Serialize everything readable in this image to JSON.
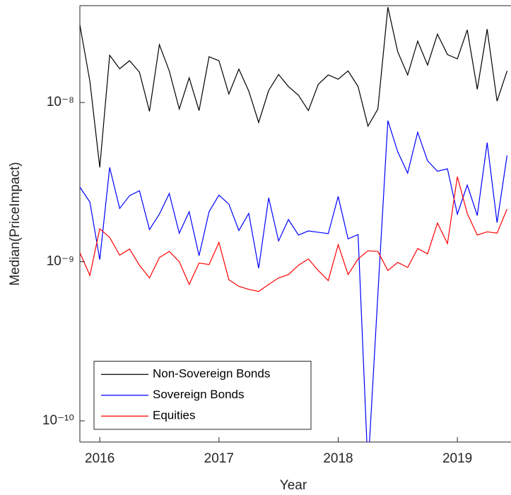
{
  "chart_data": {
    "type": "line",
    "xlabel": "Year",
    "ylabel": "Median(PriceImpact)",
    "x": [
      2015.833,
      2015.917,
      2016.0,
      2016.083,
      2016.167,
      2016.25,
      2016.333,
      2016.417,
      2016.5,
      2016.583,
      2016.667,
      2016.75,
      2016.833,
      2016.917,
      2017.0,
      2017.083,
      2017.167,
      2017.25,
      2017.333,
      2017.417,
      2017.5,
      2017.583,
      2017.667,
      2017.75,
      2017.833,
      2017.917,
      2018.0,
      2018.083,
      2018.167,
      2018.25,
      2018.333,
      2018.417,
      2018.5,
      2018.583,
      2018.667,
      2018.75,
      2018.833,
      2018.917,
      2019.0,
      2019.083,
      2019.167,
      2019.25,
      2019.333,
      2019.417
    ],
    "series": [
      {
        "name": "Non-Sovereign Bonds",
        "color": "#000000",
        "values": [
          3.07e-08,
          1.36e-08,
          3.91e-09,
          1.98e-08,
          1.63e-08,
          1.83e-08,
          1.55e-08,
          8.8e-09,
          2.31e-08,
          1.58e-08,
          9.1e-09,
          1.43e-08,
          8.9e-09,
          1.94e-08,
          1.83e-08,
          1.13e-08,
          1.62e-08,
          1.18e-08,
          7.5e-09,
          1.19e-08,
          1.5e-08,
          1.26e-08,
          1.11e-08,
          8.9e-09,
          1.3e-08,
          1.49e-08,
          1.4e-08,
          1.58e-08,
          1.26e-08,
          7.1e-09,
          9.1e-09,
          3.97e-08,
          2.08e-08,
          1.49e-08,
          2.43e-08,
          1.72e-08,
          2.69e-08,
          2e-08,
          1.88e-08,
          2.86e-08,
          1.21e-08,
          2.89e-08,
          1.02e-08,
          1.58e-08
        ]
      },
      {
        "name": "Sovereign Bonds",
        "color": "#0000ff",
        "values": [
          2.94e-09,
          2.37e-09,
          1.03e-09,
          3.91e-09,
          2.16e-09,
          2.6e-09,
          2.79e-09,
          1.59e-09,
          1.99e-09,
          2.68e-09,
          1.51e-09,
          2.06e-09,
          1.09e-09,
          2.06e-09,
          2.62e-09,
          2.3e-09,
          1.57e-09,
          2.01e-09,
          9.1e-10,
          2.52e-09,
          1.35e-09,
          1.84e-09,
          1.47e-09,
          1.56e-09,
          1.53e-09,
          1.5e-09,
          2.57e-09,
          1.39e-09,
          1.48e-09,
          5e-11,
          6.2e-10,
          7.7e-09,
          4.9e-09,
          3.6e-09,
          6.5e-09,
          4.3e-09,
          3.7e-09,
          3.83e-09,
          1.99e-09,
          3.03e-09,
          1.95e-09,
          5.6e-09,
          1.76e-09,
          4.65e-09
        ]
      },
      {
        "name": "Equities",
        "color": "#ff0000",
        "values": [
          1.14e-09,
          8.2e-10,
          1.61e-09,
          1.42e-09,
          1.1e-09,
          1.2e-09,
          9.5e-10,
          7.9e-10,
          1.06e-09,
          1.16e-09,
          1e-09,
          7.2e-10,
          9.8e-10,
          9.6e-10,
          1.32e-09,
          7.7e-10,
          7e-10,
          6.7e-10,
          6.5e-10,
          7.2e-10,
          7.9e-10,
          8.3e-10,
          9.5e-10,
          1.04e-09,
          8.8e-10,
          7.6e-10,
          1.28e-09,
          8.3e-10,
          1.04e-09,
          1.17e-09,
          1.16e-09,
          8.8e-10,
          9.9e-10,
          9.2e-10,
          1.21e-09,
          1.12e-09,
          1.75e-09,
          1.3e-09,
          3.42e-09,
          2.01e-09,
          1.47e-09,
          1.54e-09,
          1.51e-09,
          2.14e-09
        ]
      }
    ],
    "xlim": [
      2015.833,
      2019.45
    ],
    "xticks": [
      2016,
      2017,
      2018,
      2019
    ],
    "ylim": [
      7.36e-11,
      4.06e-08
    ],
    "yscale": "log",
    "yticks": [
      {
        "value": 1e-10,
        "label": "10⁻¹⁰"
      },
      {
        "value": 1e-09,
        "label": "10⁻⁹"
      },
      {
        "value": 1e-08,
        "label": "10⁻⁸"
      }
    ],
    "grid": false,
    "legend": "lower left"
  }
}
